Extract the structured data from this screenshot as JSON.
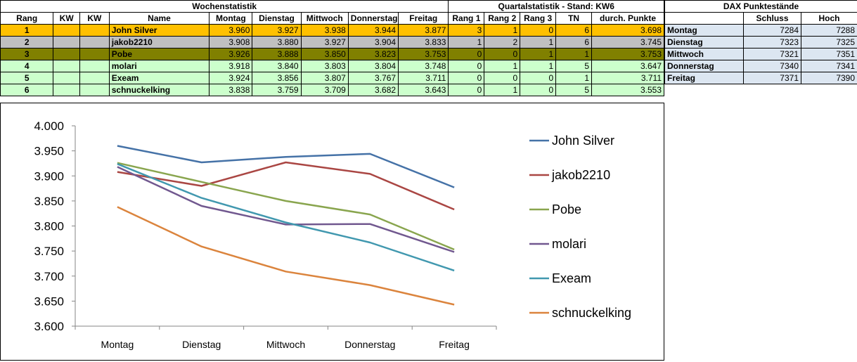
{
  "wochen": {
    "title": "Wochenstatistik",
    "headers": [
      "Rang",
      "KW",
      "KW",
      "Name",
      "Montag",
      "Dienstag",
      "Mittwoch",
      "Donnerstag",
      "Freitag"
    ]
  },
  "quartal": {
    "title": "Quartalstatistik - Stand: KW6",
    "headers": [
      "Rang 1",
      "Rang 2",
      "Rang 3",
      "TN",
      "durch. Punkte"
    ]
  },
  "dax": {
    "title": "DAX Punktestände",
    "headers": [
      "",
      "Schluss",
      "Hoch"
    ],
    "rows": [
      {
        "day": "Montag",
        "schluss": "7284",
        "hoch": "7288"
      },
      {
        "day": "Dienstag",
        "schluss": "7323",
        "hoch": "7325"
      },
      {
        "day": "Mittwoch",
        "schluss": "7321",
        "hoch": "7351"
      },
      {
        "day": "Donnerstag",
        "schluss": "7340",
        "hoch": "7341"
      },
      {
        "day": "Freitag",
        "schluss": "7371",
        "hoch": "7390"
      }
    ],
    "row_color": "#dce6f1"
  },
  "rows": [
    {
      "rang": "1",
      "kw1": "",
      "kw2": "",
      "name": "John Silver",
      "days": [
        "3.960",
        "3.927",
        "3.938",
        "3.944",
        "3.877"
      ],
      "r1": "3",
      "r2": "1",
      "r3": "0",
      "tn": "6",
      "avg": "3.698",
      "bg": "#ffc000"
    },
    {
      "rang": "2",
      "kw1": "",
      "kw2": "",
      "name": "jakob2210",
      "days": [
        "3.908",
        "3.880",
        "3.927",
        "3.904",
        "3.833"
      ],
      "r1": "1",
      "r2": "2",
      "r3": "1",
      "tn": "6",
      "avg": "3.745",
      "bg": "#c0c0c0"
    },
    {
      "rang": "3",
      "kw1": "",
      "kw2": "",
      "name": "Pobe",
      "days": [
        "3.926",
        "3.888",
        "3.850",
        "3.823",
        "3.753"
      ],
      "r1": "0",
      "r2": "0",
      "r3": "1",
      "tn": "1",
      "avg": "3.753",
      "bg": "#808000"
    },
    {
      "rang": "4",
      "kw1": "",
      "kw2": "",
      "name": "molari",
      "days": [
        "3.918",
        "3.840",
        "3.803",
        "3.804",
        "3.748"
      ],
      "r1": "0",
      "r2": "1",
      "r3": "1",
      "tn": "5",
      "avg": "3.647",
      "bg": "#ccffcc"
    },
    {
      "rang": "5",
      "kw1": "",
      "kw2": "",
      "name": "Exeam",
      "days": [
        "3.924",
        "3.856",
        "3.807",
        "3.767",
        "3.711"
      ],
      "r1": "0",
      "r2": "0",
      "r3": "0",
      "tn": "1",
      "avg": "3.711",
      "bg": "#ccffcc"
    },
    {
      "rang": "6",
      "kw1": "",
      "kw2": "",
      "name": "schnuckelking",
      "days": [
        "3.838",
        "3.759",
        "3.709",
        "3.682",
        "3.643"
      ],
      "r1": "0",
      "r2": "1",
      "r3": "0",
      "tn": "5",
      "avg": "3.553",
      "bg": "#ccffcc"
    }
  ],
  "chart_data": {
    "type": "line",
    "categories": [
      "Montag",
      "Dienstag",
      "Mittwoch",
      "Donnerstag",
      "Freitag"
    ],
    "ylim": [
      3.6,
      4.0
    ],
    "yticks": [
      "3.600",
      "3.650",
      "3.700",
      "3.750",
      "3.800",
      "3.850",
      "3.900",
      "3.950",
      "4.000"
    ],
    "grid": false,
    "legend": "right",
    "series": [
      {
        "name": "John Silver",
        "values": [
          3.96,
          3.927,
          3.938,
          3.944,
          3.877
        ],
        "color": "#4572a7"
      },
      {
        "name": "jakob2210",
        "values": [
          3.908,
          3.88,
          3.927,
          3.904,
          3.833
        ],
        "color": "#aa4643"
      },
      {
        "name": "Pobe",
        "values": [
          3.926,
          3.888,
          3.85,
          3.823,
          3.753
        ],
        "color": "#89a54e"
      },
      {
        "name": "molari",
        "values": [
          3.918,
          3.84,
          3.803,
          3.804,
          3.748
        ],
        "color": "#71588f"
      },
      {
        "name": "Exeam",
        "values": [
          3.924,
          3.856,
          3.807,
          3.767,
          3.711
        ],
        "color": "#4198af"
      },
      {
        "name": "schnuckelking",
        "values": [
          3.838,
          3.759,
          3.709,
          3.682,
          3.643
        ],
        "color": "#db843d"
      }
    ]
  }
}
